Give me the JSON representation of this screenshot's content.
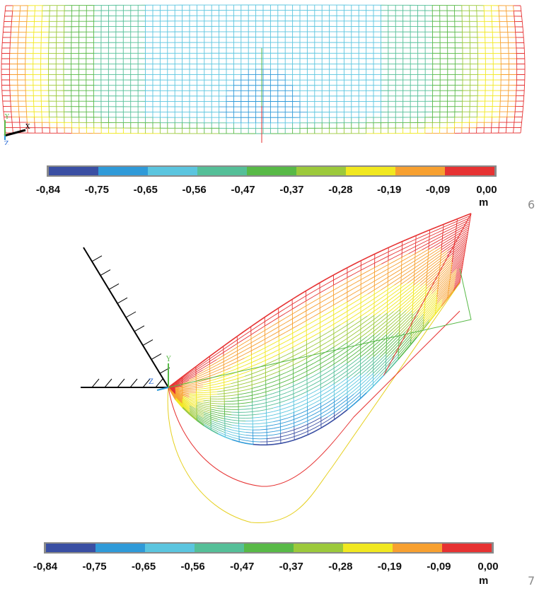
{
  "colors": [
    "#3a4fa3",
    "#2f9ad8",
    "#5bc5df",
    "#55bf98",
    "#58b947",
    "#9cc93b",
    "#f1e820",
    "#f7a030",
    "#e63232"
  ],
  "figure_top": {
    "axis_labels": {
      "y": "Y",
      "z": "Z",
      "x": "X"
    },
    "legend": {
      "ticks": [
        "-0,84",
        "-0,75",
        "-0,65",
        "-0,56",
        "-0,47",
        "-0,37",
        "-0,28",
        "-0,19",
        "-0,09",
        "0,00"
      ],
      "unit": "m"
    },
    "number": "6"
  },
  "figure_bottom": {
    "axis_labels": {
      "y": "Y",
      "z": "Z"
    },
    "legend": {
      "ticks": [
        "-0,84",
        "-0,75",
        "-0,65",
        "-0,56",
        "-0,47",
        "-0,37",
        "-0,28",
        "-0,19",
        "-0,09",
        "0,00"
      ],
      "unit": "m"
    },
    "number": "7"
  }
}
